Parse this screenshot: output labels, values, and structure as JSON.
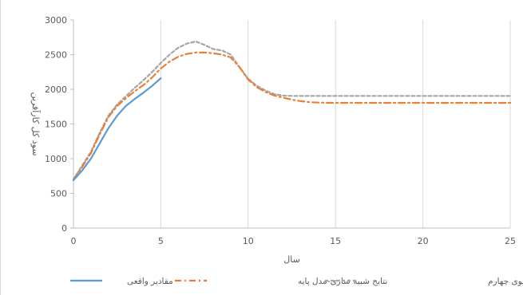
{
  "chart_data": {
    "type": "line",
    "title": "",
    "xlabel": "سال",
    "ylabel": "سود کل کارآفرین",
    "xlim": [
      0,
      25
    ],
    "ylim": [
      0,
      3000
    ],
    "xticks": [
      0,
      5,
      10,
      15,
      20,
      25
    ],
    "yticks": [
      0,
      500,
      1000,
      1500,
      2000,
      2500,
      3000
    ],
    "grid": "vertical",
    "legend": "bottom",
    "series": [
      {
        "name": "مقادیر واقعی",
        "color": "#5B9BD5",
        "dash": "solid",
        "x": [
          0,
          0.5,
          1,
          1.5,
          2,
          2.5,
          3,
          3.5,
          4,
          4.5,
          5
        ],
        "y": [
          690,
          830,
          1000,
          1220,
          1440,
          1620,
          1760,
          1860,
          1950,
          2050,
          2160
        ]
      },
      {
        "name": "نتایج شبیه سازی-مدل پایه",
        "color": "#ED7D31",
        "dash": "dashdot",
        "x": [
          0,
          0.5,
          1,
          1.5,
          2,
          2.5,
          3,
          3.5,
          4,
          4.5,
          5,
          5.5,
          6,
          6.5,
          7,
          7.5,
          8,
          8.5,
          9,
          9.5,
          10,
          10.5,
          11,
          11.5,
          12,
          12.5,
          13,
          13.5,
          14,
          15,
          16,
          18,
          20,
          22,
          24,
          25
        ],
        "y": [
          700,
          880,
          1080,
          1350,
          1600,
          1760,
          1870,
          1970,
          2060,
          2170,
          2300,
          2400,
          2470,
          2510,
          2530,
          2530,
          2520,
          2500,
          2460,
          2320,
          2140,
          2030,
          1960,
          1910,
          1880,
          1850,
          1830,
          1815,
          1808,
          1805,
          1805,
          1805,
          1805,
          1805,
          1805,
          1805
        ]
      },
      {
        "name": "نتایج شبیه سازی-سناریوی چهارم",
        "color": "#A5A5A5",
        "dash": "dashed",
        "x": [
          0,
          0.5,
          1,
          1.5,
          2,
          2.5,
          3,
          3.5,
          4,
          4.5,
          5,
          5.5,
          6,
          6.5,
          7,
          7.5,
          8,
          8.5,
          9,
          9.5,
          10,
          10.5,
          11,
          11.5,
          12,
          12.5,
          13,
          14,
          15,
          16,
          18,
          20,
          22,
          24,
          25
        ],
        "y": [
          700,
          900,
          1100,
          1370,
          1620,
          1780,
          1900,
          2020,
          2130,
          2250,
          2380,
          2500,
          2600,
          2660,
          2690,
          2640,
          2580,
          2560,
          2500,
          2320,
          2150,
          2050,
          1980,
          1930,
          1910,
          1905,
          1905,
          1905,
          1905,
          1905,
          1905,
          1905,
          1905,
          1905,
          1905
        ]
      }
    ]
  }
}
